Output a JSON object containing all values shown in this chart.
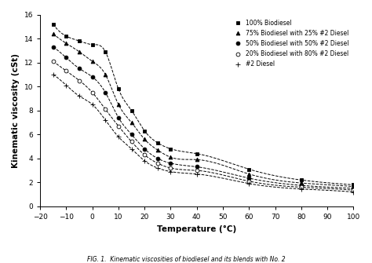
{
  "title": "",
  "xlabel": "Temperature (°C)",
  "ylabel": "Kinematic viscosity (cSt)",
  "xlim": [
    -20,
    100
  ],
  "ylim": [
    0,
    16
  ],
  "xticks": [
    -20,
    -10,
    0,
    10,
    20,
    30,
    40,
    50,
    60,
    70,
    80,
    90,
    100
  ],
  "yticks": [
    0,
    2,
    4,
    6,
    8,
    10,
    12,
    14,
    16
  ],
  "series": [
    {
      "label": "100% Biodiesel",
      "marker": "s",
      "marker_fill": "black",
      "marker_size": 3.5,
      "color": "black",
      "linestyle": "--",
      "data_x": [
        -15,
        -10,
        -5,
        0,
        5,
        10,
        15,
        20,
        25,
        30,
        40,
        60,
        80,
        100
      ],
      "data_y": [
        15.2,
        14.2,
        13.8,
        13.5,
        12.9,
        9.8,
        8.0,
        6.3,
        5.3,
        4.8,
        4.4,
        3.1,
        2.2,
        1.8
      ]
    },
    {
      "label": "75% Biodiesel with 25% #2 Diesel",
      "marker": "^",
      "marker_fill": "black",
      "marker_size": 3.5,
      "color": "black",
      "linestyle": "--",
      "data_x": [
        -15,
        -10,
        -5,
        0,
        5,
        10,
        15,
        20,
        25,
        30,
        40,
        60,
        80,
        100
      ],
      "data_y": [
        14.4,
        13.6,
        12.9,
        12.1,
        11.0,
        8.5,
        7.0,
        5.6,
        4.7,
        4.1,
        3.9,
        2.7,
        1.95,
        1.65
      ]
    },
    {
      "label": "50% Biodiesel with 50% #2 Diesel",
      "marker": "o",
      "marker_fill": "black",
      "marker_size": 3.5,
      "color": "black",
      "linestyle": "--",
      "data_x": [
        -15,
        -10,
        -5,
        0,
        5,
        10,
        15,
        20,
        25,
        30,
        40,
        60,
        80,
        100
      ],
      "data_y": [
        13.3,
        12.4,
        11.5,
        10.8,
        9.5,
        7.4,
        6.0,
        4.8,
        4.0,
        3.6,
        3.3,
        2.35,
        1.75,
        1.5
      ]
    },
    {
      "label": "20% Biodiesel with 80% #2 Diesel",
      "marker": "o",
      "marker_fill": "white",
      "marker_size": 3.5,
      "color": "black",
      "linestyle": "--",
      "data_x": [
        -15,
        -10,
        -5,
        0,
        5,
        10,
        15,
        20,
        25,
        30,
        40,
        60,
        80,
        100
      ],
      "data_y": [
        12.1,
        11.3,
        10.5,
        9.5,
        8.1,
        6.7,
        5.4,
        4.3,
        3.6,
        3.2,
        3.0,
        2.1,
        1.6,
        1.35
      ]
    },
    {
      "label": "#2 Diesel",
      "marker": "+",
      "marker_fill": "black",
      "marker_size": 4.5,
      "color": "black",
      "linestyle": "--",
      "data_x": [
        -15,
        -10,
        -5,
        0,
        5,
        10,
        15,
        20,
        25,
        30,
        40,
        60,
        80,
        100
      ],
      "data_y": [
        11.0,
        10.1,
        9.2,
        8.5,
        7.2,
        5.8,
        4.8,
        3.8,
        3.2,
        2.9,
        2.7,
        1.9,
        1.45,
        1.2
      ]
    }
  ],
  "legend_loc": "upper right",
  "background_color": "#ffffff",
  "caption": "FIG. 1.  Kinematic viscosities of biodiesel and its blends with No. 2"
}
